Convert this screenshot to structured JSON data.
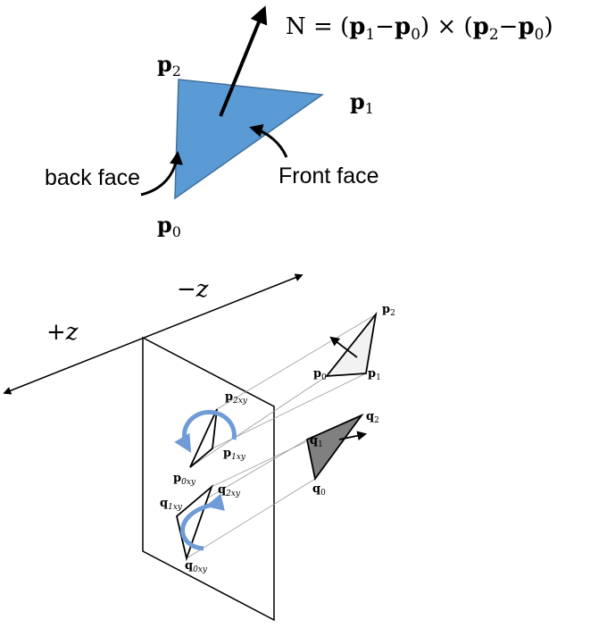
{
  "colors": {
    "triangle_fill": "#5b9bd5",
    "triangle_stroke": "#41719c",
    "rotation_arrow": "#6f9bd6",
    "light_triangle": "#f2f2f2",
    "dark_triangle": "#808080",
    "ink": "#000000"
  },
  "top": {
    "normal_formula": {
      "n": "N = (",
      "p1a": "p",
      "s1a": "1",
      "minus1": "−",
      "p0a": "p",
      "s0a": "0",
      "cross": ") × (",
      "p2b": "p",
      "s2b": "2",
      "minus2": "−",
      "p0b": "p",
      "s0b": "0",
      "close": ")"
    },
    "p2_label": {
      "base": "p",
      "sub": "2"
    },
    "p1_label": {
      "base": "p",
      "sub": "1"
    },
    "p0_label": {
      "base": "p",
      "sub": "0"
    },
    "back_face_label": "back face",
    "front_face_label": "Front face"
  },
  "bottom": {
    "minus_z_label": "−z",
    "plus_z_label": "+z",
    "p2": {
      "base": "p",
      "sub": "2"
    },
    "p1": {
      "base": "p",
      "sub": "1"
    },
    "p0": {
      "base": "p",
      "sub": "0"
    },
    "q2": {
      "base": "q",
      "sub": "2"
    },
    "q1": {
      "base": "q",
      "sub": "1"
    },
    "q0": {
      "base": "q",
      "sub": "0"
    },
    "p2xy": {
      "base": "p",
      "sub": "2xy"
    },
    "p1xy": {
      "base": "p",
      "sub": "1xy"
    },
    "p0xy": {
      "base": "p",
      "sub": "0xy"
    },
    "q2xy": {
      "base": "q",
      "sub": "2xy"
    },
    "q1xy": {
      "base": "q",
      "sub": "1xy"
    },
    "q0xy": {
      "base": "q",
      "sub": "0xy"
    }
  }
}
